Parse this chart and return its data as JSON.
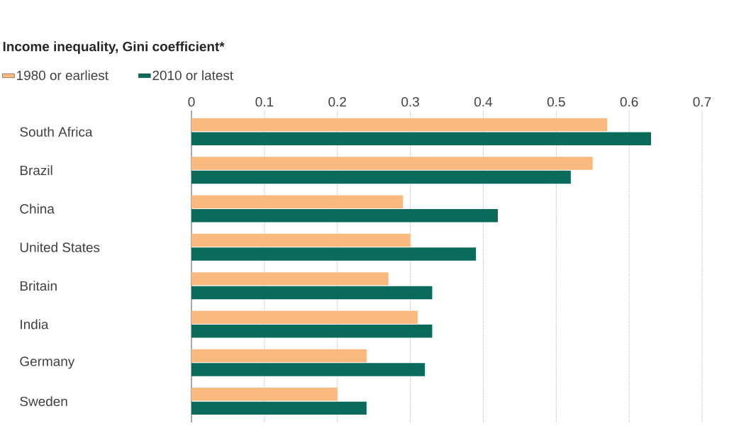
{
  "chart_data": {
    "type": "bar",
    "orientation": "horizontal",
    "title": "Income inequality, Gini coefficient*",
    "categories": [
      "South Africa",
      "Brazil",
      "China",
      "United States",
      "Britain",
      "India",
      "Germany",
      "Sweden"
    ],
    "series": [
      {
        "name": "1980 or earliest",
        "color": "#f9b97f",
        "values": [
          0.57,
          0.55,
          0.29,
          0.3,
          0.27,
          0.31,
          0.24,
          0.2
        ]
      },
      {
        "name": "2010 or latest",
        "color": "#0b6b5a",
        "values": [
          0.63,
          0.52,
          0.42,
          0.39,
          0.33,
          0.33,
          0.32,
          0.24
        ]
      }
    ],
    "xlim": [
      0,
      0.7
    ],
    "xticks": [
      0,
      0.1,
      0.2,
      0.3,
      0.4,
      0.5,
      0.6,
      0.7
    ],
    "grid": "x",
    "legend": "top left"
  }
}
